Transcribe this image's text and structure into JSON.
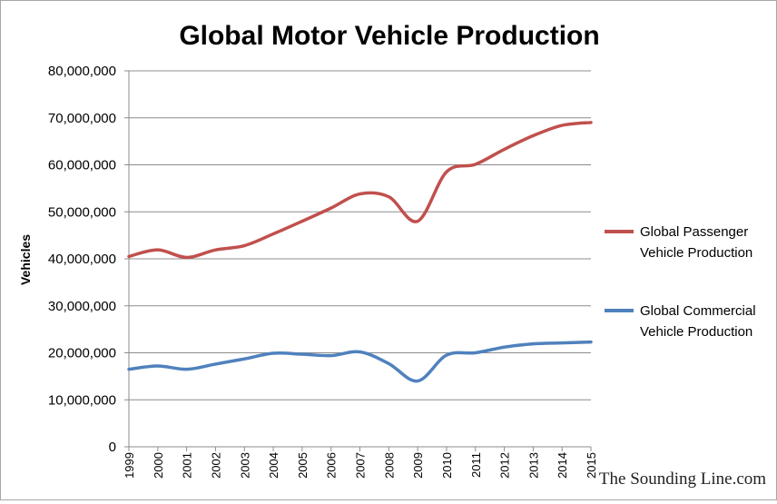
{
  "chart_data": {
    "type": "line",
    "title": "Global Motor Vehicle Production",
    "ylabel": "Vehicles",
    "xlabel": "",
    "ylim": [
      0,
      80000000
    ],
    "yticks": [
      0,
      10000000,
      20000000,
      30000000,
      40000000,
      50000000,
      60000000,
      70000000,
      80000000
    ],
    "ytick_labels": [
      "0",
      "10,000,000",
      "20,000,000",
      "30,000,000",
      "40,000,000",
      "50,000,000",
      "60,000,000",
      "70,000,000",
      "80,000,000"
    ],
    "categories": [
      "1999",
      "2000",
      "2001",
      "2002",
      "2003",
      "2004",
      "2005",
      "2006",
      "2007",
      "2008",
      "2009",
      "2010",
      "2011",
      "2012",
      "2013",
      "2014",
      "2015"
    ],
    "grid": true,
    "legend_position": "right",
    "series": [
      {
        "name": "Global Passenger Vehicle Production",
        "legend_lines": [
          "Global Passenger",
          "Vehicle Production"
        ],
        "color": "#c0504d",
        "values": [
          40500000,
          41900000,
          40300000,
          41900000,
          42800000,
          45300000,
          48000000,
          50800000,
          53800000,
          53200000,
          48000000,
          58500000,
          60100000,
          63300000,
          66200000,
          68400000,
          69000000
        ]
      },
      {
        "name": "Global Commercial Vehicle Production",
        "legend_lines": [
          "Global Commercial",
          "Vehicle Production"
        ],
        "color": "#4f81bd",
        "values": [
          16500000,
          17200000,
          16500000,
          17600000,
          18700000,
          19900000,
          19700000,
          19400000,
          20200000,
          17700000,
          14000000,
          19500000,
          20000000,
          21200000,
          21900000,
          22100000,
          22300000
        ]
      }
    ]
  },
  "watermark": "The Sounding Line.com"
}
